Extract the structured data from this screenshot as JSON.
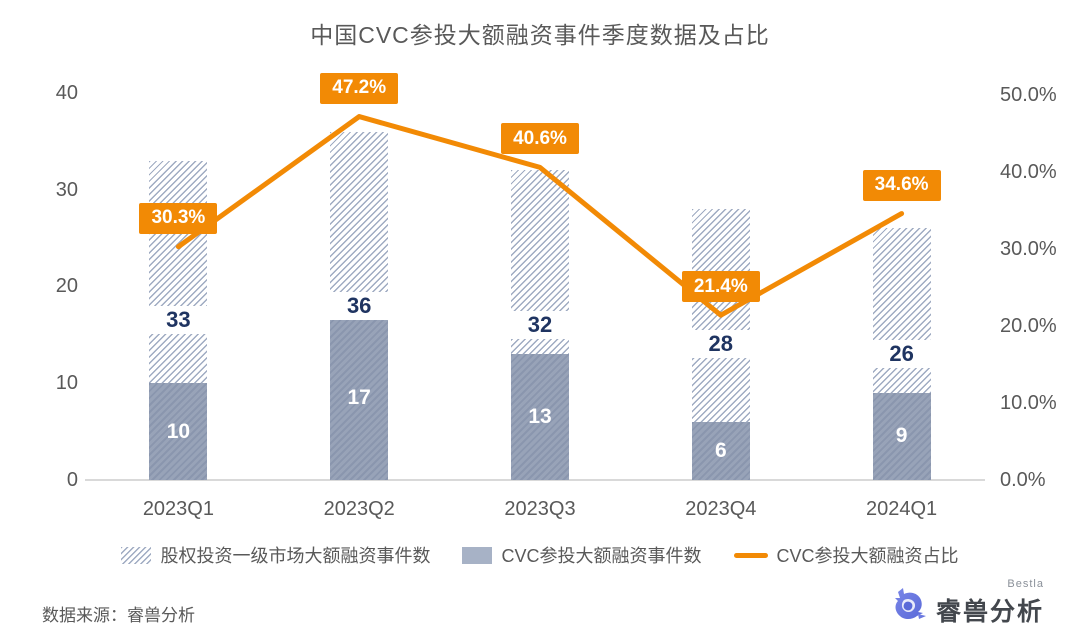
{
  "title": "中国CVC参投大额融资事件季度数据及占比",
  "chart_data": {
    "type": "bar",
    "categories": [
      "2023Q1",
      "2023Q2",
      "2023Q3",
      "2023Q4",
      "2024Q1"
    ],
    "series": [
      {
        "name": "股权投资一级市场大额融资事件数",
        "type": "bar",
        "style": "hatch-light",
        "axis": "left",
        "values": [
          33,
          36,
          32,
          28,
          26
        ]
      },
      {
        "name": "CVC参投大额融资事件数",
        "type": "bar",
        "style": "hatch-dark",
        "axis": "left",
        "values": [
          10,
          17,
          13,
          6,
          9
        ]
      },
      {
        "name": "CVC参投大额融资占比",
        "type": "line",
        "axis": "right",
        "values": [
          30.3,
          47.2,
          40.6,
          21.4,
          34.6
        ],
        "point_labels": [
          "30.3%",
          "47.2%",
          "40.6%",
          "21.4%",
          "34.6%"
        ]
      }
    ],
    "left_axis": {
      "min": 0,
      "max": 40,
      "ticks": [
        0,
        10,
        20,
        30,
        40
      ]
    },
    "right_axis": {
      "min": 0,
      "max": 50,
      "ticks": [
        0,
        10,
        20,
        30,
        40,
        50
      ],
      "tick_labels": [
        "0.0%",
        "10.0%",
        "20.0%",
        "30.0%",
        "40.0%",
        "50.0%"
      ]
    },
    "grid": "off",
    "legend_position": "bottom"
  },
  "legend": [
    {
      "label": "股权投资一级市场大额融资事件数",
      "swatch": "hatch"
    },
    {
      "label": "CVC参投大额融资事件数",
      "swatch": "solid"
    },
    {
      "label": "CVC参投大额融资占比",
      "swatch": "line"
    }
  ],
  "footer": {
    "source": "数据来源：睿兽分析"
  },
  "logo": {
    "name": "睿兽分析",
    "badge": "Bestla"
  },
  "colors": {
    "orange": "#f28a05",
    "navy": "#1f3461",
    "bar_dark_base": "#98a3b8",
    "bar_dark_stripe": "#8a96ae",
    "bar_light_stripe": "#9fabc2",
    "axis_text": "#595959",
    "axis_line": "#d9d9d9",
    "title_text": "#595959"
  }
}
